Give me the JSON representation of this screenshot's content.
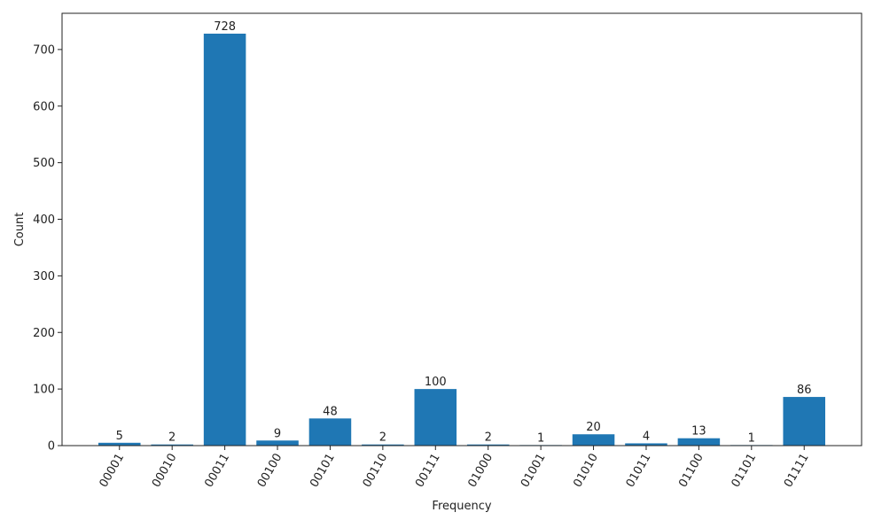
{
  "chart_data": {
    "type": "bar",
    "categories": [
      "00001",
      "00010",
      "00011",
      "00100",
      "00101",
      "00110",
      "00111",
      "01000",
      "01001",
      "01010",
      "01011",
      "01100",
      "01101",
      "01111"
    ],
    "values": [
      5,
      2,
      728,
      9,
      48,
      2,
      100,
      2,
      1,
      20,
      4,
      13,
      1,
      86
    ],
    "color": "#1f77b4",
    "x_label": "Frequency",
    "y_label": "Count",
    "ylim": [
      0,
      764
    ],
    "yticks": [
      0,
      100,
      200,
      300,
      400,
      500,
      600,
      700
    ]
  }
}
